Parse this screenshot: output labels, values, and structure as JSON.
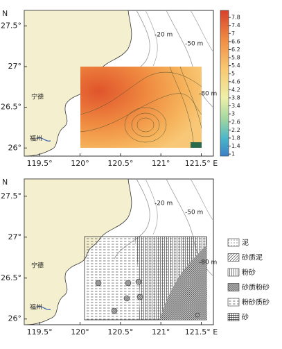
{
  "panels": [
    {
      "north": "N",
      "xlim": [
        119.31,
        121.65
      ],
      "ylim": [
        25.9,
        27.69
      ],
      "xticks": [
        {
          "value": 119.5,
          "label": "119.5°"
        },
        {
          "value": 120,
          "label": "120°"
        },
        {
          "value": 120.5,
          "label": "120.5°"
        },
        {
          "value": 121,
          "label": "121°"
        },
        {
          "value": 121.5,
          "label": "121.5° E"
        }
      ],
      "yticks": [
        {
          "value": 27.5,
          "label": "27.5°"
        },
        {
          "value": 27,
          "label": "27°"
        },
        {
          "value": 26.5,
          "label": "26.5°"
        },
        {
          "value": 26,
          "label": "26°"
        }
      ],
      "places": [
        "宁德",
        "福州"
      ],
      "depths": [
        "-20 m",
        "-50 m",
        "-80 m"
      ],
      "colorbar": {
        "lim": [
          0.9,
          8.15
        ],
        "ticks": [
          7.8,
          7.4,
          7,
          6.6,
          6.2,
          5.8,
          5.4,
          5,
          4.6,
          4.2,
          3.8,
          3.4,
          3,
          2.6,
          2.2,
          1.8,
          1.4,
          1
        ]
      }
    },
    {
      "north": "N",
      "xlim": [
        119.31,
        121.65
      ],
      "ylim": [
        25.93,
        27.71
      ],
      "xticks": [
        {
          "value": 119.5,
          "label": "119.5°"
        },
        {
          "value": 120,
          "label": "120°"
        },
        {
          "value": 120.5,
          "label": "120.5°"
        },
        {
          "value": 121,
          "label": "121°"
        },
        {
          "value": 121.5,
          "label": "121.5° E"
        }
      ],
      "yticks": [
        {
          "value": 27.5,
          "label": "27.5°"
        },
        {
          "value": 27,
          "label": "27°"
        },
        {
          "value": 26.5,
          "label": "26.5°"
        },
        {
          "value": 26,
          "label": "26°"
        }
      ],
      "places": [
        "宁德",
        "福州"
      ],
      "depths": [
        "-20 m",
        "-50 m",
        "-80 m"
      ],
      "legend": [
        "泥",
        "砂质泥",
        "粉砂",
        "砂质粉砂",
        "粉砂质砂",
        "砂"
      ]
    }
  ]
}
